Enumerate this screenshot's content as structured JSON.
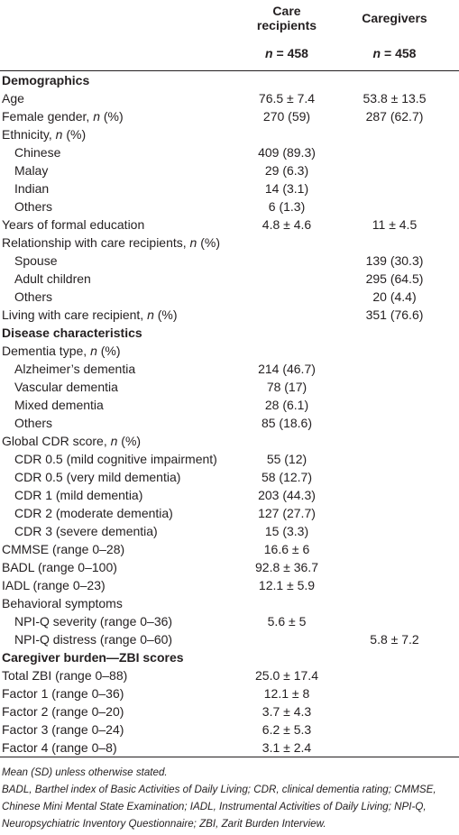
{
  "header": {
    "columns": [
      {
        "title": "Care recipients",
        "n_var": "n",
        "n_text": "= 458"
      },
      {
        "title": "Caregivers",
        "n_var": "n",
        "n_text": "= 458"
      }
    ]
  },
  "sections": [
    {
      "title": "Demographics",
      "rows": [
        {
          "label": "Age",
          "care": "76.5 ± 7.4",
          "caregiver": "53.8 ± 13.5"
        },
        {
          "label": "Female gender,",
          "em": "n",
          "suffix": "(%)",
          "care": "270 (59)",
          "caregiver": "287 (62.7)"
        },
        {
          "label": "Ethnicity,",
          "em": "n",
          "suffix": "(%)",
          "children": [
            {
              "label": "Chinese",
              "care": "409 (89.3)"
            },
            {
              "label": "Malay",
              "care": "29 (6.3)"
            },
            {
              "label": "Indian",
              "care": "14 (3.1)"
            },
            {
              "label": "Others",
              "care": "6 (1.3)"
            }
          ]
        },
        {
          "label": "Years of formal education",
          "care": "4.8 ± 4.6",
          "caregiver": "11 ± 4.5"
        },
        {
          "label": "Relationship with care recipients,",
          "em": "n",
          "suffix": "(%)",
          "children": [
            {
              "label": "Spouse",
              "caregiver": "139 (30.3)"
            },
            {
              "label": "Adult children",
              "caregiver": "295 (64.5)"
            },
            {
              "label": "Others",
              "caregiver": "20 (4.4)"
            }
          ]
        },
        {
          "label": "Living with care recipient,",
          "em": "n",
          "suffix": "(%)",
          "caregiver": "351 (76.6)"
        }
      ]
    },
    {
      "title": "Disease characteristics",
      "rows": [
        {
          "label": "Dementia type,",
          "em": "n",
          "suffix": "(%)",
          "children": [
            {
              "label": "Alzheimer’s dementia",
              "care": "214 (46.7)"
            },
            {
              "label": "Vascular dementia",
              "care": "78 (17)"
            },
            {
              "label": "Mixed dementia",
              "care": "28 (6.1)"
            },
            {
              "label": "Others",
              "care": "85 (18.6)"
            }
          ]
        },
        {
          "label": "Global CDR score,",
          "em": "n",
          "suffix": "(%)",
          "children": [
            {
              "label": "CDR 0.5 (mild cognitive impairment)",
              "care": "55 (12)"
            },
            {
              "label": "CDR 0.5 (very mild dementia)",
              "care": "58 (12.7)"
            },
            {
              "label": "CDR 1 (mild dementia)",
              "care": "203 (44.3)"
            },
            {
              "label": "CDR 2 (moderate dementia)",
              "care": "127 (27.7)"
            },
            {
              "label": "CDR 3 (severe dementia)",
              "care": "15 (3.3)"
            }
          ]
        },
        {
          "label": "CMMSE (range 0–28)",
          "care": "16.6 ± 6"
        },
        {
          "label": "BADL (range 0–100)",
          "care": "92.8 ± 36.7"
        },
        {
          "label": "IADL (range 0–23)",
          "care": "12.1 ± 5.9"
        },
        {
          "label": "Behavioral symptoms",
          "children": [
            {
              "label": "NPI-Q severity (range 0–36)",
              "care": "5.6 ± 5"
            },
            {
              "label": "NPI-Q distress (range 0–60)",
              "caregiver": "5.8 ± 7.2"
            }
          ]
        }
      ]
    },
    {
      "title": "Caregiver burden—ZBI scores",
      "rows": [
        {
          "label": "Total ZBI (range 0–88)",
          "care": "25.0 ± 17.4"
        },
        {
          "label": "Factor 1 (range 0–36)",
          "care": "12.1 ± 8"
        },
        {
          "label": "Factor 2 (range 0–20)",
          "care": "3.7 ± 4.3"
        },
        {
          "label": "Factor 3 (range 0–24)",
          "care": "6.2 ± 5.3"
        },
        {
          "label": "Factor 4 (range 0–8)",
          "care": "3.1 ± 2.4"
        }
      ]
    }
  ],
  "notes": [
    "Mean (SD) unless otherwise stated.",
    "BADL, Barthel index of Basic Activities of Daily Living; CDR, clinical dementia rating; CMMSE, Chinese Mini Mental State Examination; IADL, Instrumental Activities of Daily Living; NPI-Q, Neuropsychiatric Inventory Questionnaire; ZBI, Zarit Burden Interview."
  ]
}
